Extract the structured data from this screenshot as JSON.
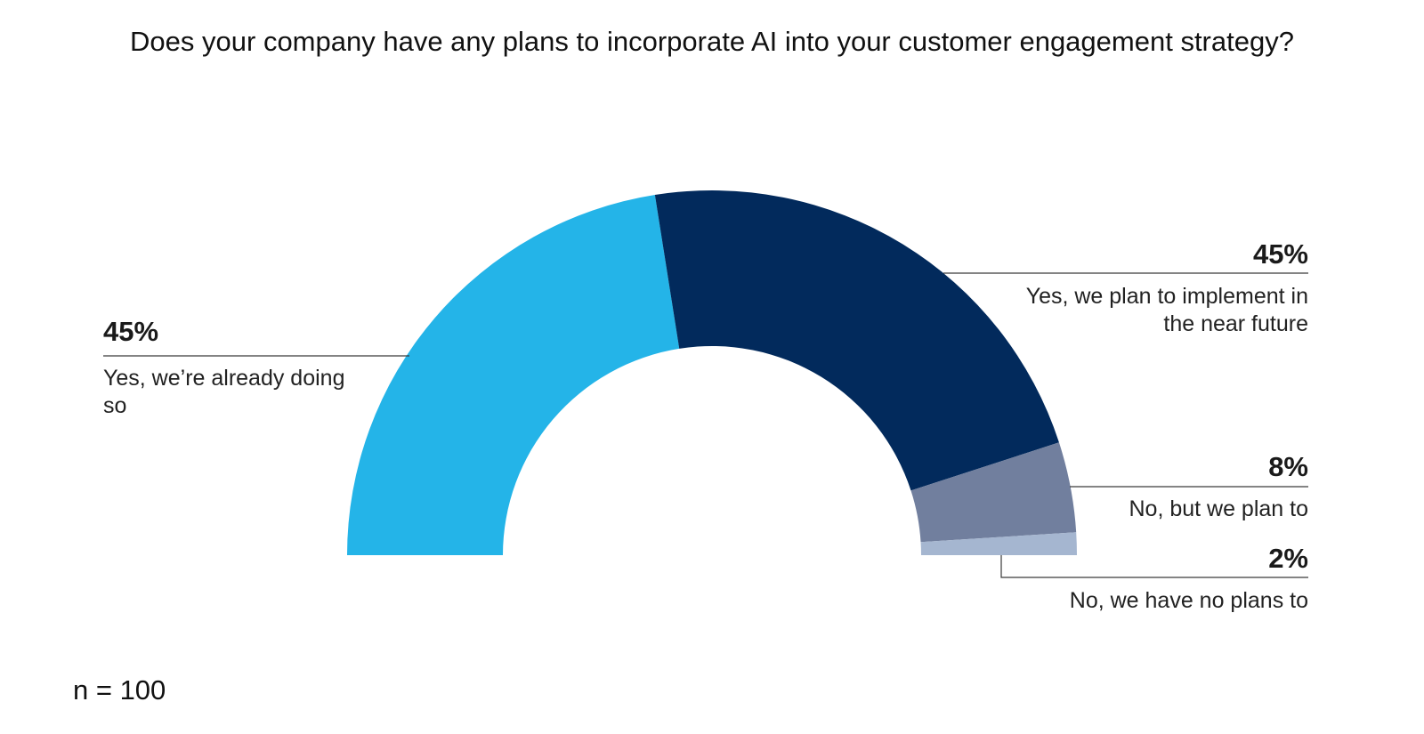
{
  "chart_data": {
    "type": "pie",
    "variant": "semi-donut",
    "title": "Does your company have any plans to incorporate AI into your customer engagement strategy?",
    "note": "n = 100",
    "slices": [
      {
        "value": 45,
        "label": "45%",
        "name": "Yes, we’re already doing so",
        "color": "#24b4e8",
        "label_side": "left"
      },
      {
        "value": 45,
        "label": "45%",
        "name": "Yes, we plan to implement in the near future",
        "color": "#022a5c",
        "label_side": "right"
      },
      {
        "value": 8,
        "label": "8%",
        "name": "No, but we plan to",
        "color": "#717f9e",
        "label_side": "right"
      },
      {
        "value": 2,
        "label": "2%",
        "name": "No, we have no plans to",
        "color": "#a5b6d0",
        "label_side": "right"
      }
    ]
  }
}
